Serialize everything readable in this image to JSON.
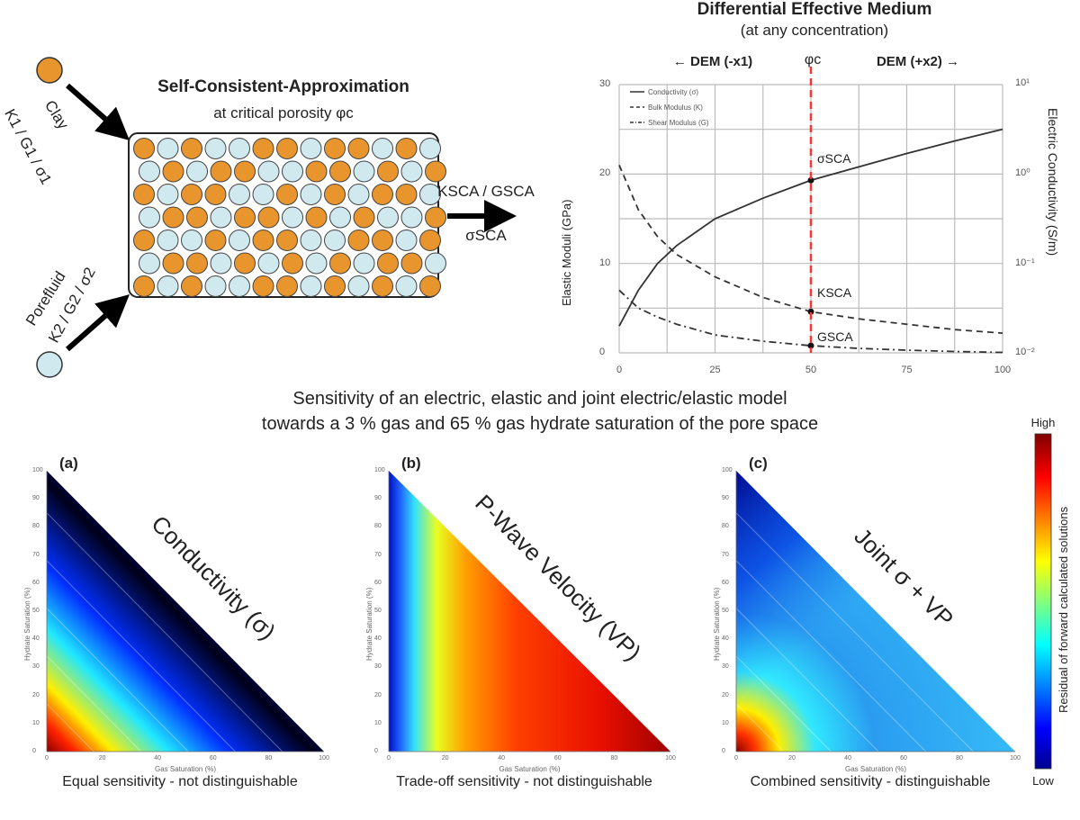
{
  "sca": {
    "title": "Self-Consistent-Approximation",
    "subtitle": "at critical porosity φc",
    "clay_label": "Clay",
    "clay_props": "K1 / G1 / σ1",
    "fluid_label": "Porefluid",
    "fluid_props": "K2 / G2 / σ2",
    "output_moduli": "KSCA / GSCA",
    "output_sigma": "σSCA",
    "colors": {
      "clay": "#e8952e",
      "fluid": "#cfe9ef"
    }
  },
  "dem": {
    "title": "Differential Effective Medium",
    "subtitle": "(at any concentration)",
    "left_label": "← DEM (-x1)",
    "center_label": "φc",
    "right_label": "DEM (+x2) →",
    "annotations": {
      "sigma": "σSCA",
      "k": "KSCA",
      "g": "GSCA"
    }
  },
  "chart_data": {
    "type": "line",
    "title": "Differential Effective Medium",
    "xlabel": "",
    "ylabel": "Elastic Moduli (GPa)",
    "y2label": "Electric Conductivity (S/m)",
    "xlim": [
      0,
      100
    ],
    "ylim": [
      0,
      30
    ],
    "x_ticks": [
      "0",
      "25",
      "50",
      "75",
      "100"
    ],
    "y_ticks": [
      "0",
      "10",
      "20",
      "30"
    ],
    "y2_ticks": [
      "10⁻²",
      "10⁻¹",
      "10⁰",
      "10¹"
    ],
    "grid": true,
    "legend_position": "top-left",
    "critical_x": 50,
    "x": [
      0,
      5,
      10,
      15,
      25,
      37.5,
      50,
      62.5,
      75,
      87.5,
      100
    ],
    "series": [
      {
        "name": "Conductivity (σ)",
        "style": "solid",
        "values": [
          3,
          7,
          10,
          12,
          15,
          17.3,
          19.3,
          20.8,
          22.3,
          23.7,
          25
        ]
      },
      {
        "name": "Bulk Modulus (K)",
        "style": "dashed",
        "values": [
          21,
          16,
          13,
          11,
          8.5,
          6.2,
          4.6,
          3.8,
          3.2,
          2.6,
          2.2
        ]
      },
      {
        "name": "Shear Modulus (G)",
        "style": "dashdot",
        "values": [
          7,
          5,
          4,
          3.2,
          2,
          1.3,
          0.8,
          0.5,
          0.3,
          0.15,
          0.05
        ]
      }
    ]
  },
  "caption": {
    "line1": "Sensitivity of an electric, elastic and joint electric/elastic model",
    "line2": "towards a 3 % gas and 65 % gas hydrate saturation of the pore space"
  },
  "panels": [
    {
      "label": "(a)",
      "title": "Conductivity (σ)",
      "caption": "Equal sensitivity - not distinguishable"
    },
    {
      "label": "(b)",
      "title": "P-Wave Velocity (VP)",
      "caption": "Trade-off sensitivity - not distinguishable"
    },
    {
      "label": "(c)",
      "title": "Joint σ + VP",
      "caption": "Combined sensitivity - distinguishable"
    }
  ],
  "panel_axes": {
    "xlabel": "Gas Saturation (%)",
    "ylabel": "Hydrate Saturation (%)",
    "x_ticks": [
      "0",
      "20",
      "40",
      "60",
      "80",
      "100"
    ],
    "y_ticks": [
      "0",
      "10",
      "20",
      "30",
      "40",
      "50",
      "60",
      "70",
      "80",
      "90",
      "100"
    ]
  },
  "colorbar": {
    "high": "High",
    "low": "Low",
    "label": "Residual of forward calculated solutions"
  }
}
